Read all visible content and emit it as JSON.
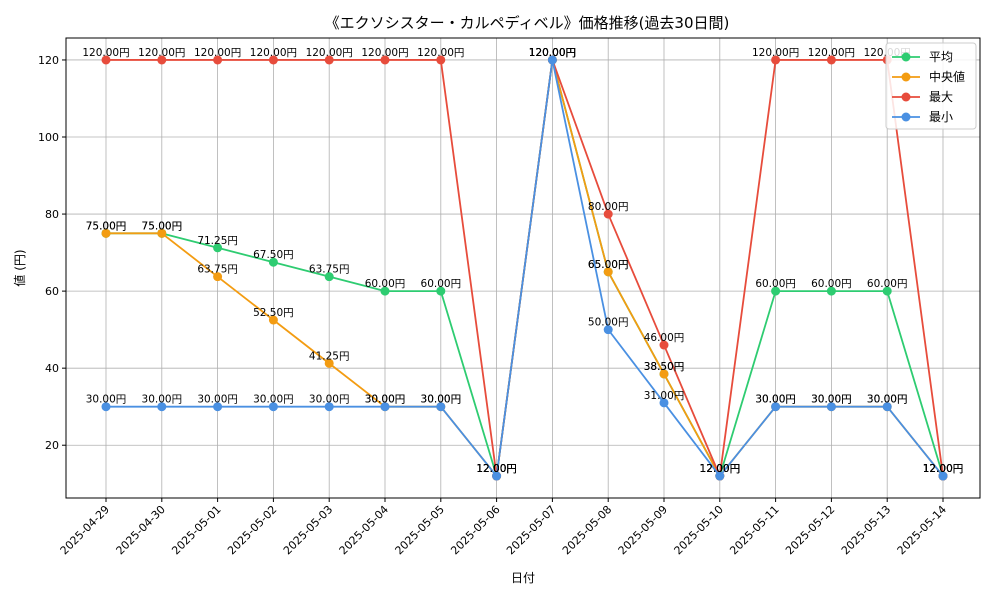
{
  "chart_data": {
    "type": "line",
    "title": "《エクソシスター・カルペディベル》価格推移(過去30日間)",
    "xlabel": "日付",
    "ylabel": "値 (円)",
    "ylim": [
      6.3,
      125.7
    ],
    "yticks": [
      20,
      40,
      60,
      80,
      100,
      120
    ],
    "grid": true,
    "legend_position": "top-right",
    "label_suffix": "円",
    "categories": [
      "2025-04-29",
      "2025-04-30",
      "2025-05-01",
      "2025-05-02",
      "2025-05-03",
      "2025-05-04",
      "2025-05-05",
      "2025-05-06",
      "2025-05-07",
      "2025-05-08",
      "2025-05-09",
      "2025-05-10",
      "2025-05-11",
      "2025-05-12",
      "2025-05-13",
      "2025-05-14"
    ],
    "series": [
      {
        "name": "平均",
        "color": "#2ecc71",
        "values": [
          75,
          75,
          71.25,
          67.5,
          63.75,
          60,
          60,
          12,
          120,
          65,
          38.5,
          12,
          60,
          60,
          60,
          12
        ]
      },
      {
        "name": "中央値",
        "color": "#f39c12",
        "values": [
          75,
          75,
          63.75,
          52.5,
          41.25,
          30,
          30,
          12,
          120,
          65,
          38.5,
          12,
          30,
          30,
          30,
          12
        ]
      },
      {
        "name": "最大",
        "color": "#e74c3c",
        "values": [
          120,
          120,
          120,
          120,
          120,
          120,
          120,
          12,
          120,
          80,
          46,
          12,
          120,
          120,
          120,
          12
        ]
      },
      {
        "name": "最小",
        "color": "#4a90e2",
        "values": [
          30,
          30,
          30,
          30,
          30,
          30,
          30,
          12,
          120,
          50,
          31,
          12,
          30,
          30,
          30,
          12
        ]
      }
    ]
  }
}
